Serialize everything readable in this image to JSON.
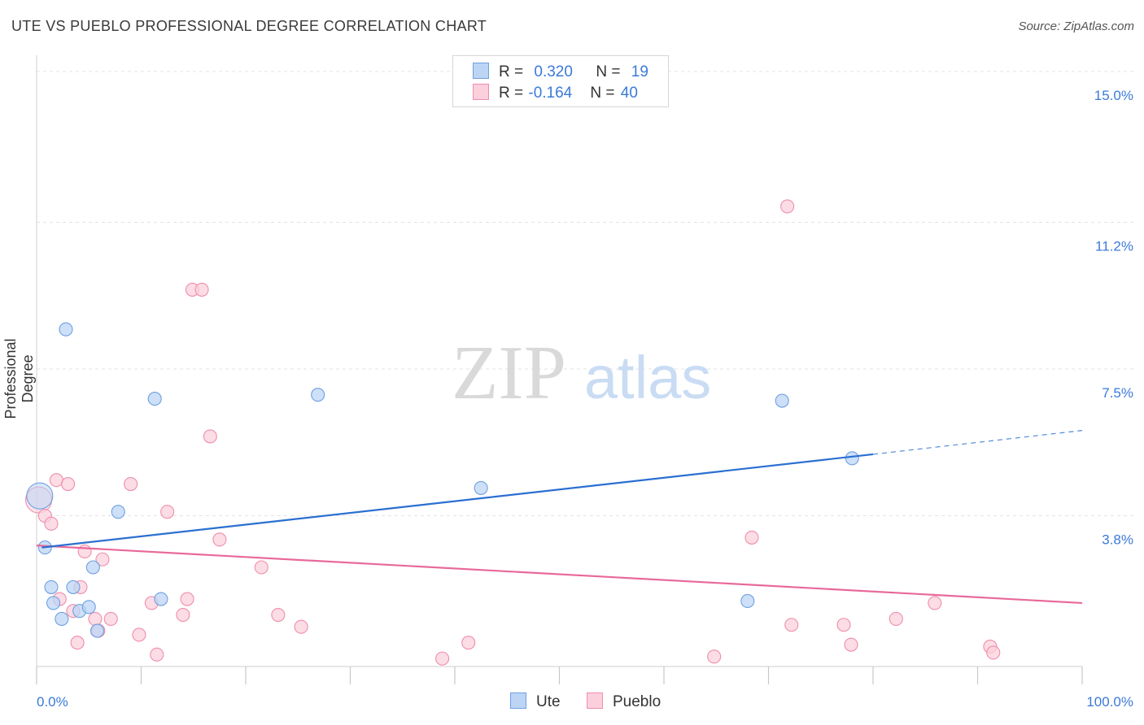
{
  "title": "UTE VS PUEBLO PROFESSIONAL DEGREE CORRELATION CHART",
  "source": "Source: ZipAtlas.com",
  "watermark": {
    "zip": "ZIP",
    "atlas": "atlas"
  },
  "colors": {
    "ute_fill": "#bcd5f5",
    "ute_stroke": "#6f9fe0",
    "ute_line": "#2a6fd1",
    "pueblo_fill": "#fbd0dc",
    "pueblo_stroke": "#ee8eab",
    "pueblo_line": "#e8699a",
    "axis_label": "#3b7ad9",
    "grid": "#e3e3e3"
  },
  "legend": {
    "ute": {
      "r_label": "R = ",
      "r_value": "0.320",
      "n_label": "N = ",
      "n_value": "19"
    },
    "pueblo": {
      "r_label": "R = ",
      "r_value": "-0.164",
      "n_label": "N = ",
      "n_value": "40"
    }
  },
  "bottom_legend": {
    "ute": "Ute",
    "pueblo": "Pueblo"
  },
  "chart_data": {
    "type": "scatter",
    "xlabel": "",
    "ylabel": "Professional Degree",
    "xlim": [
      0,
      100
    ],
    "ylim": [
      0,
      15.0
    ],
    "y_ticks": [
      {
        "value": 3.8,
        "label": "3.8%"
      },
      {
        "value": 7.5,
        "label": "7.5%"
      },
      {
        "value": 11.2,
        "label": "11.2%"
      },
      {
        "value": 15.0,
        "label": "15.0%"
      }
    ],
    "x_tick_labels": {
      "min": "0.0%",
      "max": "100.0%"
    },
    "series": [
      {
        "name": "Ute",
        "r": 0.32,
        "n": 19,
        "trend": {
          "x0": 0.5,
          "y0": 3.0,
          "x1": 80,
          "y1": 5.35,
          "dash_x1": 100,
          "dash_y1": 5.95
        },
        "points": [
          {
            "x": 0.3,
            "y": 4.3,
            "big": true
          },
          {
            "x": 0.8,
            "y": 3.0
          },
          {
            "x": 1.4,
            "y": 2.0
          },
          {
            "x": 1.6,
            "y": 1.6
          },
          {
            "x": 2.4,
            "y": 1.2
          },
          {
            "x": 2.8,
            "y": 8.5
          },
          {
            "x": 3.5,
            "y": 2.0
          },
          {
            "x": 4.1,
            "y": 1.4
          },
          {
            "x": 5.0,
            "y": 1.5
          },
          {
            "x": 5.4,
            "y": 2.5
          },
          {
            "x": 5.8,
            "y": 0.9
          },
          {
            "x": 7.8,
            "y": 3.9
          },
          {
            "x": 11.3,
            "y": 6.75
          },
          {
            "x": 11.9,
            "y": 1.7
          },
          {
            "x": 26.9,
            "y": 6.85
          },
          {
            "x": 42.5,
            "y": 4.5
          },
          {
            "x": 68.0,
            "y": 1.65
          },
          {
            "x": 71.3,
            "y": 6.7
          },
          {
            "x": 78.0,
            "y": 5.25
          }
        ]
      },
      {
        "name": "Pueblo",
        "r": -0.164,
        "n": 40,
        "trend": {
          "x0": 0,
          "y0": 3.05,
          "x1": 100,
          "y1": 1.6
        },
        "points": [
          {
            "x": 0.2,
            "y": 4.2,
            "big": true
          },
          {
            "x": 0.8,
            "y": 3.8
          },
          {
            "x": 1.4,
            "y": 3.6
          },
          {
            "x": 1.9,
            "y": 4.7
          },
          {
            "x": 2.2,
            "y": 1.7
          },
          {
            "x": 3.0,
            "y": 4.6
          },
          {
            "x": 3.5,
            "y": 1.4
          },
          {
            "x": 3.9,
            "y": 0.6
          },
          {
            "x": 4.2,
            "y": 2.0
          },
          {
            "x": 4.6,
            "y": 2.9
          },
          {
            "x": 5.6,
            "y": 1.2
          },
          {
            "x": 5.9,
            "y": 0.9
          },
          {
            "x": 6.3,
            "y": 2.7
          },
          {
            "x": 7.1,
            "y": 1.2
          },
          {
            "x": 9.0,
            "y": 4.6
          },
          {
            "x": 9.8,
            "y": 0.8
          },
          {
            "x": 11.0,
            "y": 1.6
          },
          {
            "x": 11.5,
            "y": 0.3
          },
          {
            "x": 12.5,
            "y": 3.9
          },
          {
            "x": 14.0,
            "y": 1.3
          },
          {
            "x": 14.4,
            "y": 1.7
          },
          {
            "x": 14.9,
            "y": 9.5
          },
          {
            "x": 15.8,
            "y": 9.5
          },
          {
            "x": 16.6,
            "y": 5.8
          },
          {
            "x": 17.5,
            "y": 3.2
          },
          {
            "x": 21.5,
            "y": 2.5
          },
          {
            "x": 23.1,
            "y": 1.3
          },
          {
            "x": 25.3,
            "y": 1.0
          },
          {
            "x": 38.8,
            "y": 0.2
          },
          {
            "x": 41.3,
            "y": 0.6
          },
          {
            "x": 64.8,
            "y": 0.25
          },
          {
            "x": 68.4,
            "y": 3.25
          },
          {
            "x": 71.8,
            "y": 11.6
          },
          {
            "x": 72.2,
            "y": 1.05
          },
          {
            "x": 77.2,
            "y": 1.05
          },
          {
            "x": 77.9,
            "y": 0.55
          },
          {
            "x": 82.2,
            "y": 1.2
          },
          {
            "x": 85.9,
            "y": 1.6
          },
          {
            "x": 91.2,
            "y": 0.5
          },
          {
            "x": 91.5,
            "y": 0.35
          }
        ]
      }
    ]
  }
}
